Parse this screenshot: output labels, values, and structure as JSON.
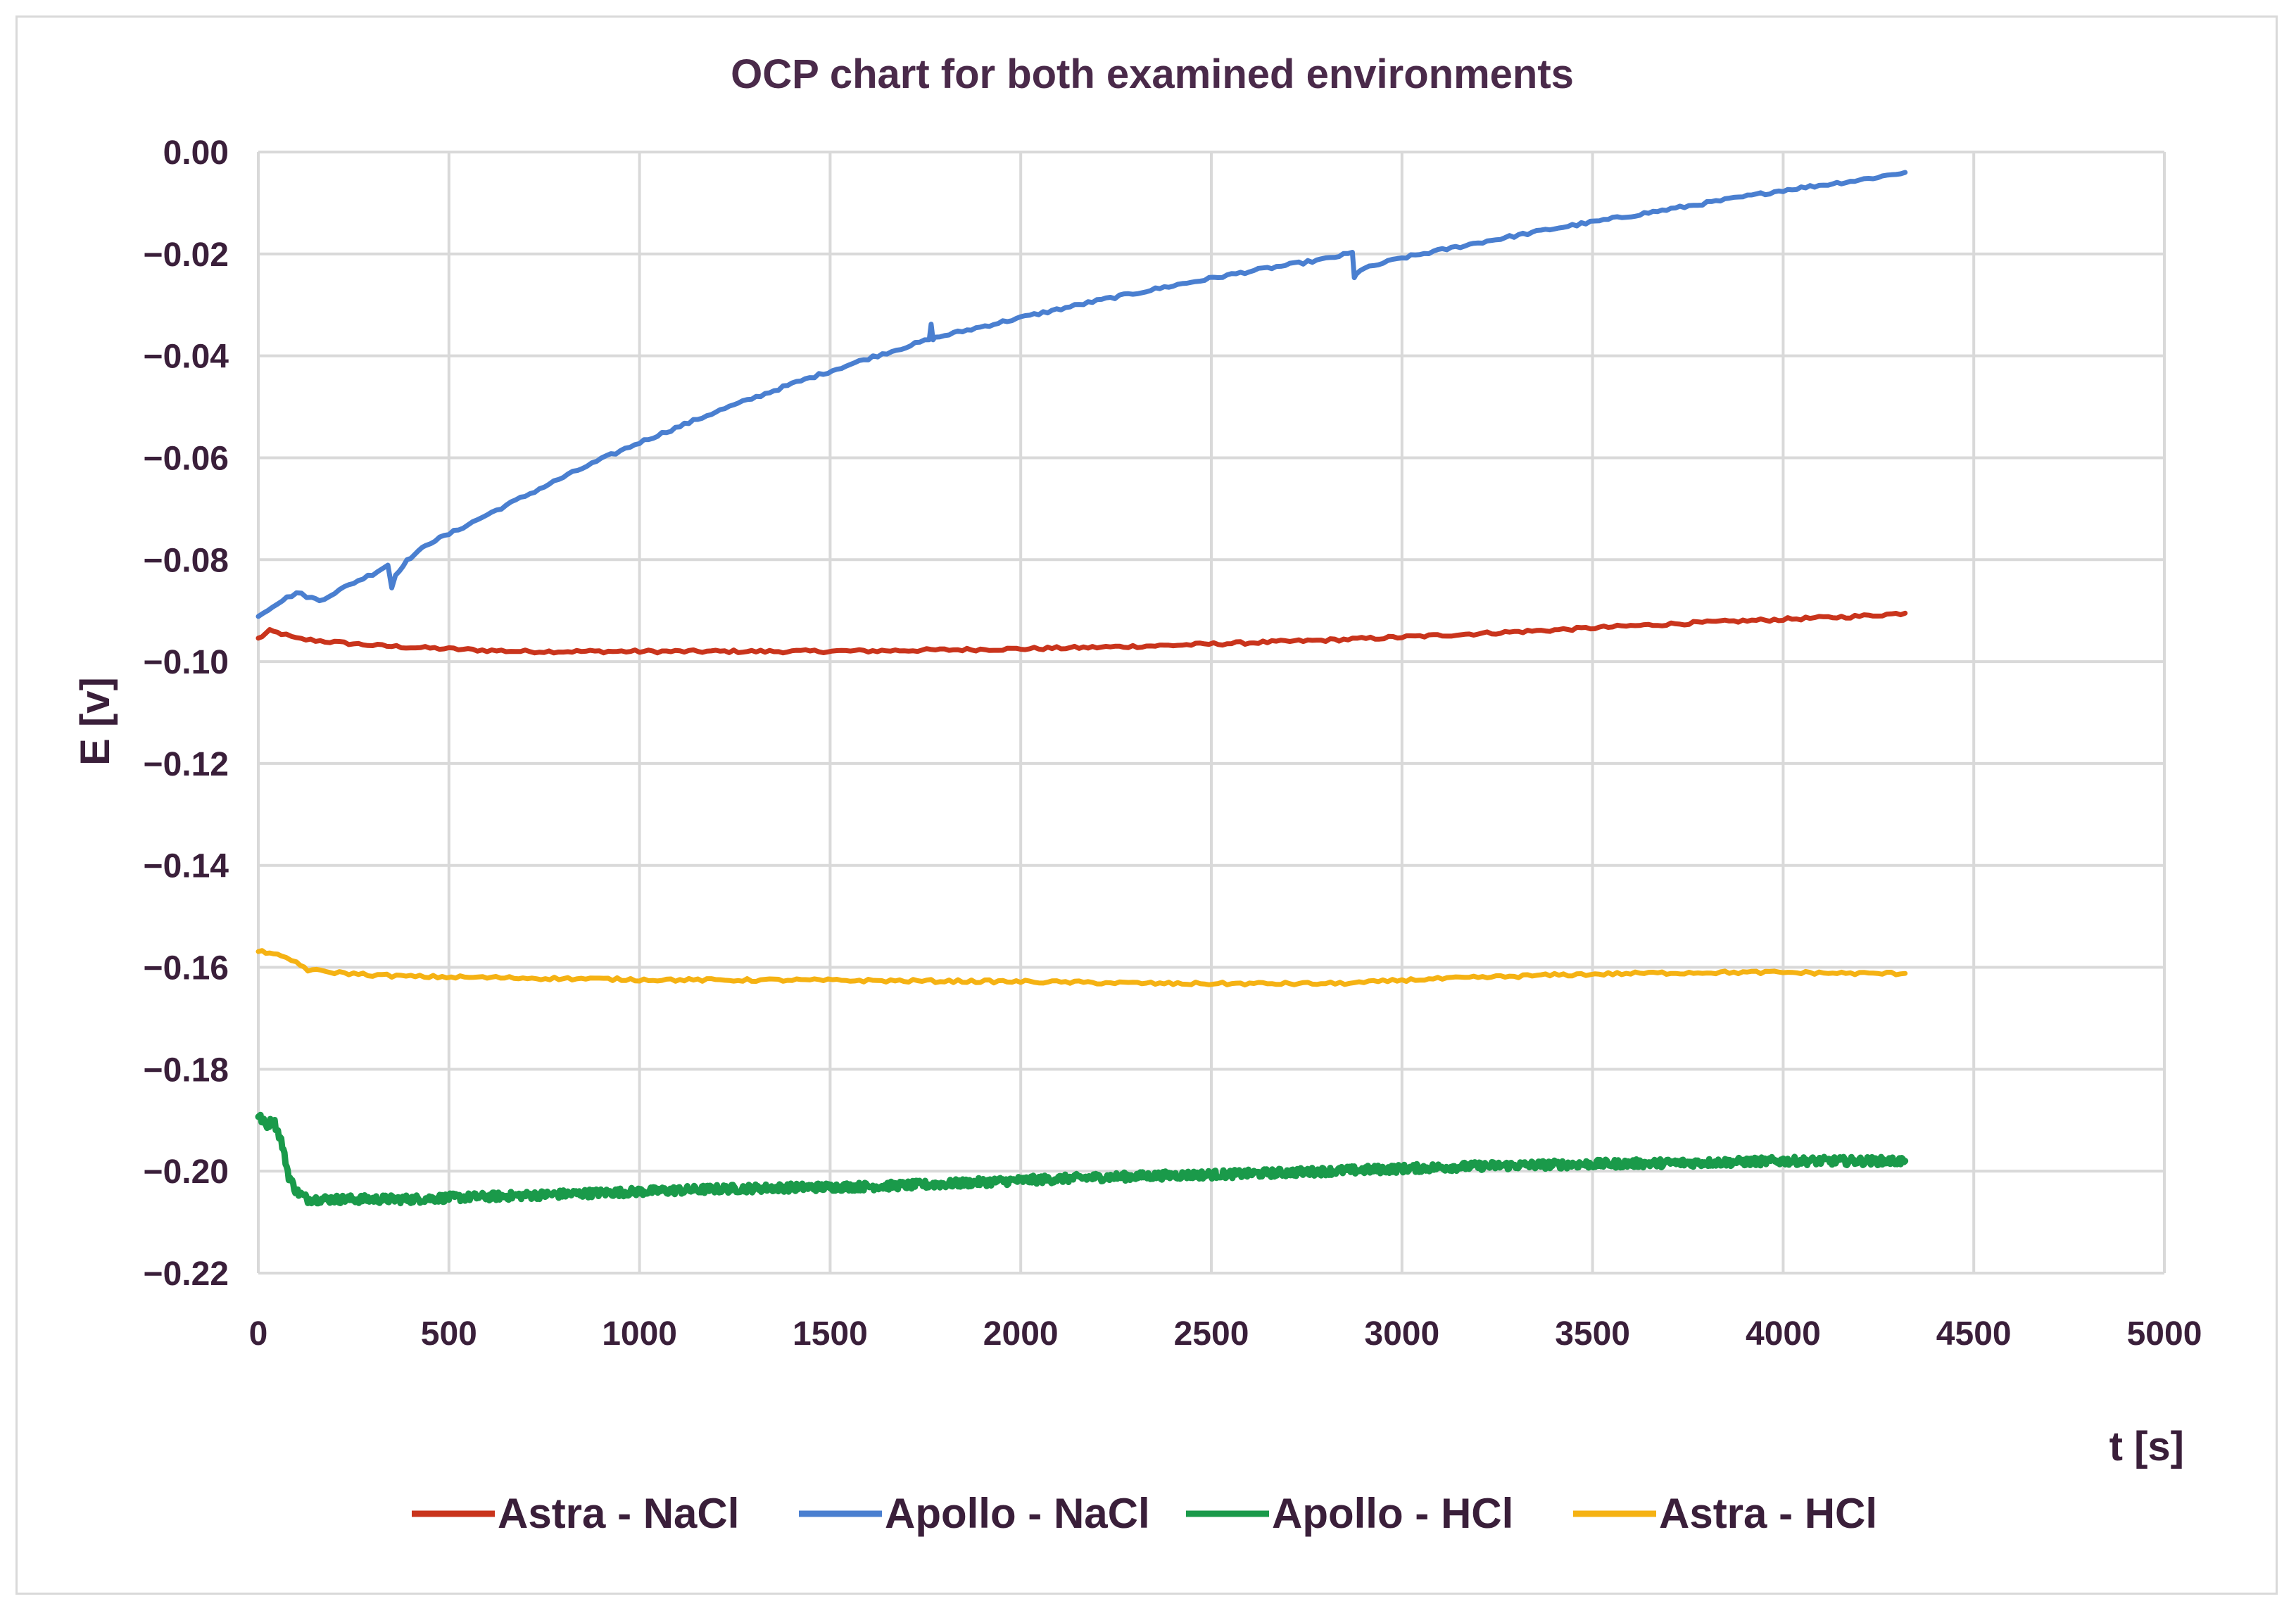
{
  "chart_data": {
    "type": "line",
    "title": "OCP chart for both examined environments",
    "xlabel": "t [s]",
    "ylabel": "E [v]",
    "xlim": [
      0,
      5000
    ],
    "ylim": [
      -0.22,
      0.0
    ],
    "grid": true,
    "legend_position": "bottom",
    "x_ticks": [
      "0",
      "500",
      "1000",
      "1500",
      "2000",
      "2500",
      "3000",
      "3500",
      "4000",
      "4500",
      "5000"
    ],
    "x_tick_values": [
      0,
      500,
      1000,
      1500,
      2000,
      2500,
      3000,
      3500,
      4000,
      4500,
      5000
    ],
    "y_ticks": [
      "0.00",
      "−0.02",
      "−0.04",
      "−0.06",
      "−0.08",
      "−0.10",
      "−0.12",
      "−0.14",
      "−0.16",
      "−0.18",
      "−0.20",
      "−0.22"
    ],
    "y_tick_values": [
      0.0,
      -0.02,
      -0.04,
      -0.06,
      -0.08,
      -0.1,
      -0.12,
      -0.14,
      -0.16,
      -0.18,
      -0.2,
      -0.22
    ],
    "series": [
      {
        "name": "Astra - NaCl",
        "color": "#c9341c",
        "noise": 0.0003,
        "x": [
          0,
          30,
          60,
          100,
          200,
          300,
          400,
          500,
          600,
          700,
          800,
          1000,
          1200,
          1400,
          1600,
          1800,
          2000,
          2200,
          2400,
          2600,
          2800,
          3000,
          3200,
          3400,
          3600,
          3800,
          4000,
          4200,
          4320
        ],
        "y": [
          -0.0955,
          -0.094,
          -0.0945,
          -0.0955,
          -0.0962,
          -0.0968,
          -0.0972,
          -0.0975,
          -0.0978,
          -0.098,
          -0.098,
          -0.098,
          -0.098,
          -0.098,
          -0.0979,
          -0.0977,
          -0.0975,
          -0.0972,
          -0.0968,
          -0.0963,
          -0.0958,
          -0.0952,
          -0.0945,
          -0.0938,
          -0.093,
          -0.0923,
          -0.0917,
          -0.0911,
          -0.0905
        ]
      },
      {
        "name": "Apollo - NaCl",
        "color": "#4a7fd0",
        "noise": 0.0003,
        "x": [
          0,
          50,
          100,
          140,
          160,
          200,
          250,
          300,
          340,
          350,
          360,
          380,
          400,
          420,
          440,
          500,
          600,
          700,
          800,
          900,
          1000,
          1200,
          1400,
          1600,
          1760,
          1765,
          1770,
          1775,
          1800,
          2000,
          2200,
          2400,
          2600,
          2800,
          2870,
          2875,
          2880,
          2890,
          2950,
          3000,
          3200,
          3400,
          3600,
          3800,
          4000,
          4200,
          4320
        ],
        "y": [
          -0.091,
          -0.0885,
          -0.0865,
          -0.0875,
          -0.088,
          -0.0865,
          -0.0845,
          -0.0828,
          -0.081,
          -0.0855,
          -0.083,
          -0.081,
          -0.0795,
          -0.0785,
          -0.077,
          -0.075,
          -0.0712,
          -0.0675,
          -0.0638,
          -0.0603,
          -0.057,
          -0.051,
          -0.0455,
          -0.0405,
          -0.0368,
          -0.034,
          -0.0366,
          -0.0365,
          -0.036,
          -0.0325,
          -0.0292,
          -0.0262,
          -0.0234,
          -0.021,
          -0.0198,
          -0.0248,
          -0.0238,
          -0.0232,
          -0.0218,
          -0.0208,
          -0.0178,
          -0.015,
          -0.0125,
          -0.01,
          -0.0075,
          -0.0055,
          -0.004
        ]
      },
      {
        "name": "Apollo - HCl",
        "color": "#1a9a4a",
        "noise": 0.0008,
        "x": [
          0,
          20,
          40,
          60,
          80,
          100,
          130,
          200,
          300,
          400,
          500,
          600,
          800,
          1000,
          1200,
          1400,
          1600,
          1800,
          2000,
          2200,
          2400,
          2600,
          2800,
          3000,
          3200,
          3400,
          3600,
          3800,
          4000,
          4200,
          4320
        ],
        "y": [
          -0.189,
          -0.191,
          -0.19,
          -0.194,
          -0.201,
          -0.204,
          -0.2055,
          -0.2055,
          -0.2055,
          -0.2055,
          -0.2052,
          -0.205,
          -0.2045,
          -0.204,
          -0.2035,
          -0.2032,
          -0.203,
          -0.2025,
          -0.2018,
          -0.2012,
          -0.2008,
          -0.2005,
          -0.2,
          -0.1995,
          -0.199,
          -0.1987,
          -0.1985,
          -0.1983,
          -0.198,
          -0.198,
          -0.198
        ]
      },
      {
        "name": "Astra - HCl",
        "color": "#f5b213",
        "noise": 0.0003,
        "x": [
          0,
          30,
          60,
          100,
          130,
          200,
          300,
          400,
          600,
          800,
          1000,
          1200,
          1400,
          1600,
          1800,
          2000,
          2200,
          2400,
          2600,
          2800,
          2900,
          3000,
          3200,
          3400,
          3600,
          3800,
          4000,
          4200,
          4320
        ],
        "y": [
          -0.157,
          -0.157,
          -0.158,
          -0.159,
          -0.1605,
          -0.161,
          -0.1615,
          -0.1618,
          -0.162,
          -0.1622,
          -0.1624,
          -0.1625,
          -0.1625,
          -0.1626,
          -0.1627,
          -0.1628,
          -0.163,
          -0.1632,
          -0.1632,
          -0.1632,
          -0.163,
          -0.1625,
          -0.162,
          -0.1615,
          -0.1612,
          -0.161,
          -0.161,
          -0.1612,
          -0.1612
        ]
      }
    ]
  }
}
